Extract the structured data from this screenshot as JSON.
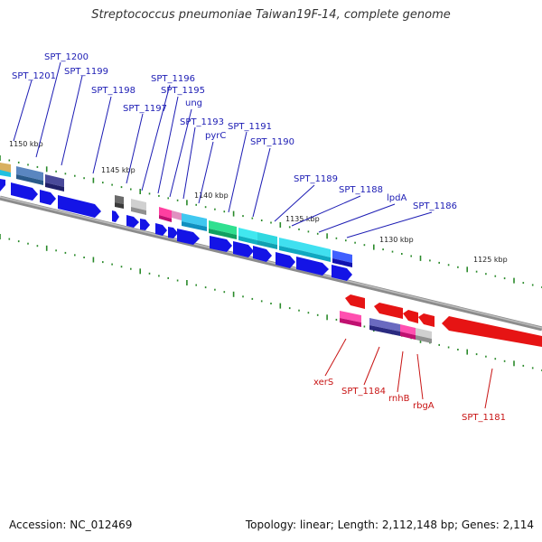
{
  "title": "Streptococcus pneumoniae Taiwan19F-14, complete genome",
  "footer": {
    "accession": "Accession: NC_012469",
    "summary": "Topology: linear; Length: 2,112,148 bp; Genes: 2,114"
  },
  "colors": {
    "top_label": "#1c1cb4",
    "bottom_label": "#c81414",
    "tick": "#2a8a2a",
    "backbone": "#8c8c8c",
    "forward_arrow": "#1414e6",
    "reverse_arrow": "#e61414"
  },
  "scale": {
    "labels": [
      "1150 kbp",
      "1145 kbp",
      "1140 kbp",
      "1135 kbp",
      "1130 kbp",
      "1125 kbp"
    ]
  },
  "genes_top": [
    "SPT_1201",
    "SPT_1200",
    "SPT_1199",
    "SPT_1198",
    "SPT_1197",
    "SPT_1196",
    "SPT_1195",
    "ung",
    "SPT_1193",
    "pyrC",
    "SPT_1191",
    "SPT_1190",
    "SPT_1189",
    "SPT_1188",
    "lpdA",
    "SPT_1186"
  ],
  "genes_bottom": [
    "xerS",
    "SPT_1184",
    "rnhB",
    "rbgA",
    "SPT_1181"
  ]
}
